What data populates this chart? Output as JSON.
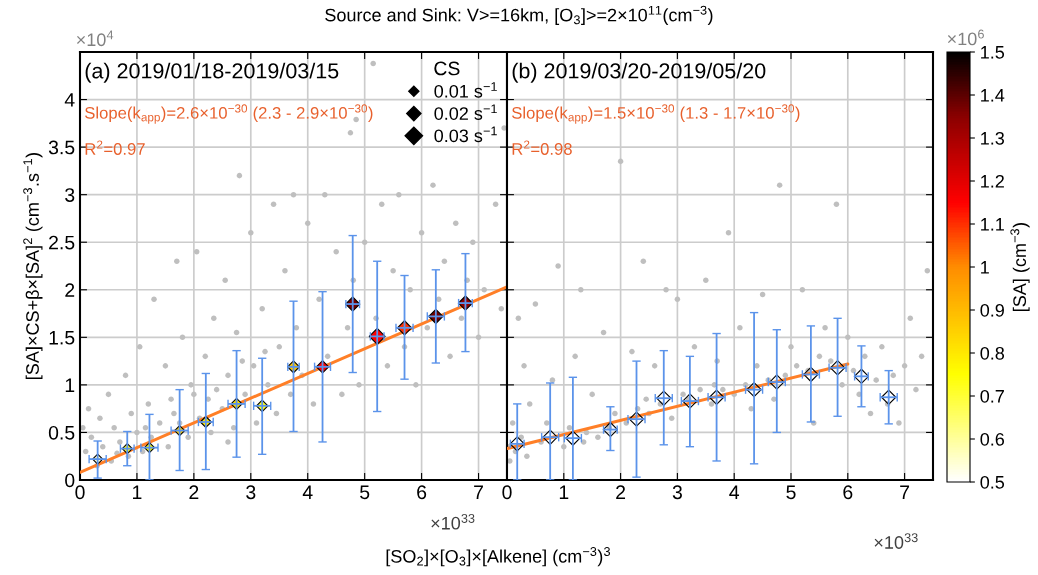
{
  "chart_data": [
    {
      "type": "scatter",
      "title": "Source and Sink: V>=16km, [O$_{3}$]>=2×10$^{11}$(cm$^{−3}$)",
      "subtitle": "(a) 2019/01/18-2019/03/15",
      "xlabel": "[SO$_{2}$]×[O$_{3}$]×[Alkene] (cm$^{−3}$)$^{3}$",
      "ylabel": "[SA]×CS+β×[SA]$^{2}$ (cm$^{−3}$.s$^{−1}$)",
      "annotations": [
        "Slope(k$_{app}$)=2.6×10$^{−30}$ (2.3 - 2.9×10$^{−30}$)",
        "R$^{2}$=0.97",
        "×10$^{4}$",
        "×10$^{33}$",
        "×10$^{6}$"
      ],
      "xlim": [
        0,
        7.5
      ],
      "ylim": [
        0,
        4.5
      ],
      "xticks": [
        0,
        1,
        2,
        3,
        4,
        5,
        6,
        7
      ],
      "yticks": [
        0,
        0.5,
        1,
        1.5,
        2,
        2.5,
        3,
        3.5,
        4
      ],
      "grid": true,
      "legend_title": "CS",
      "size_legend": [
        {
          "value": 0.01,
          "label": "0.01 s$^{−1}$"
        },
        {
          "value": 0.02,
          "label": "0.02 s$^{−1}$"
        },
        {
          "value": 0.03,
          "label": "0.03 s$^{−1}$"
        }
      ],
      "clim": [
        0.5,
        1.5
      ],
      "cticks": [
        0.5,
        0.6,
        0.7,
        0.8,
        0.9,
        1,
        1.1,
        1.2,
        1.3,
        1.4,
        1.5
      ],
      "clabel": "[SA] (cm$^{−3}$)",
      "series": [
        {
          "marker": "circle",
          "color": "#bfbfbf",
          "x": [
            0.05,
            0.1,
            0.15,
            0.2,
            0.3,
            0.35,
            0.4,
            0.5,
            0.55,
            0.6,
            0.7,
            0.8,
            0.85,
            0.9,
            1.0,
            1.05,
            1.1,
            1.2,
            1.25,
            1.3,
            1.4,
            1.5,
            1.55,
            1.6,
            1.7,
            1.75,
            1.8,
            1.9,
            2.0,
            2.05,
            2.1,
            2.2,
            2.3,
            2.35,
            2.4,
            2.5,
            2.55,
            2.6,
            2.7,
            2.75,
            2.8,
            2.9,
            3.0,
            3.05,
            3.1,
            3.2,
            3.3,
            3.4,
            3.45,
            3.5,
            3.6,
            3.7,
            3.75,
            3.8,
            3.9,
            4.0,
            4.1,
            4.2,
            4.3,
            4.35,
            4.5,
            4.6,
            4.7,
            4.75,
            4.8,
            4.85,
            4.9,
            5.0,
            5.15,
            5.2,
            5.3,
            5.4,
            5.5,
            5.6,
            5.7,
            5.8,
            5.9,
            6.0,
            6.1,
            6.2,
            6.3,
            6.4,
            6.5,
            6.6,
            6.7,
            6.8,
            6.9,
            7.0,
            7.1,
            7.3,
            7.4,
            7.45,
            2.25,
            1.65,
            2.85,
            1.15,
            0.65,
            3.25,
            2.6,
            1.95
          ],
          "values": [
            0.55,
            0.3,
            0.75,
            0.45,
            0.15,
            0.65,
            0.35,
            0.9,
            0.2,
            0.55,
            0.4,
            1.1,
            0.25,
            0.7,
            0.5,
            1.4,
            0.3,
            0.8,
            0.45,
            1.9,
            0.6,
            1.2,
            0.35,
            0.85,
            2.3,
            0.6,
            1.5,
            0.45,
            0.9,
            2.4,
            0.65,
            1.3,
            0.5,
            1.7,
            0.95,
            0.75,
            2.1,
            1.1,
            0.55,
            1.55,
            3.2,
            0.9,
            2.6,
            1.2,
            0.6,
            1.8,
            1.0,
            2.9,
            0.7,
            1.4,
            2.2,
            0.9,
            3.0,
            1.6,
            1.1,
            2.7,
            0.8,
            1.9,
            3.0,
            1.3,
            2.4,
            0.9,
            1.6,
            3.65,
            2.1,
            3.79,
            1.0,
            2.5,
            4.38,
            1.7,
            2.9,
            1.2,
            2.2,
            3.0,
            1.4,
            2.0,
            1.0,
            2.6,
            1.6,
            3.1,
            1.9,
            2.3,
            1.3,
            2.7,
            1.7,
            2.1,
            2.5,
            1.5,
            2.0,
            2.9,
            1.8,
            3.7,
            0.85,
            0.7,
            1.25,
            0.55,
            0.28,
            1.35,
            0.4,
            1.0
          ]
        },
        {
          "type": "bubble",
          "marker": "diamond",
          "x": [
            0.31,
            0.83,
            1.22,
            1.75,
            2.21,
            2.75,
            3.2,
            3.75,
            4.26,
            4.79,
            5.22,
            5.7,
            6.25,
            6.77
          ],
          "values": [
            0.22,
            0.33,
            0.34,
            0.52,
            0.61,
            0.8,
            0.78,
            1.19,
            1.19,
            1.85,
            1.51,
            1.6,
            1.72,
            1.86
          ],
          "errors": [
            [
              0.02,
              0.41
            ],
            [
              0.15,
              0.51
            ],
            [
              0.0,
              0.69
            ],
            [
              0.1,
              0.95
            ],
            [
              0.11,
              1.12
            ],
            [
              0.24,
              1.36
            ],
            [
              0.27,
              1.28
            ],
            [
              0.51,
              1.88
            ],
            [
              0.4,
              1.98
            ],
            [
              1.13,
              2.57
            ],
            [
              0.72,
              2.3
            ],
            [
              1.06,
              2.15
            ],
            [
              1.23,
              2.21
            ],
            [
              1.35,
              2.38
            ]
          ],
          "xerrors": [
            0.15,
            0.12,
            0.15,
            0.15,
            0.13,
            0.15,
            0.15,
            0.1,
            0.14,
            0.12,
            0.12,
            0.15,
            0.15,
            0.12
          ],
          "sizes": [
            0.01,
            0.01,
            0.01,
            0.01,
            0.012,
            0.012,
            0.013,
            0.014,
            0.015,
            0.02,
            0.025,
            0.02,
            0.02,
            0.02
          ],
          "colors": [
            "#ffffcc",
            "#ffff1f",
            "#ffff00",
            "#ffd100",
            "#ffe800",
            "#ffdf00",
            "#ffff1f",
            "#ffc800",
            "#ff0000",
            "#6f0000",
            "#ff0000",
            "#ff2f00",
            "#6f0000",
            "#8b0000"
          ]
        },
        {
          "type": "line",
          "color": "#ff7f27",
          "x": [
            0,
            7.5
          ],
          "values": [
            0.08,
            2.03
          ]
        }
      ]
    },
    {
      "type": "scatter",
      "subtitle": "(b) 2019/03/20-2019/05/20",
      "annotations": [
        "Slope(k$_{app}$)=1.5×10$^{−30}$ (1.3 - 1.7×10$^{−30}$)",
        "R$^{2}$=0.98",
        "×10$^{33}$"
      ],
      "xlim": [
        0,
        7.5
      ],
      "ylim": [
        0,
        4.5
      ],
      "xticks": [
        0,
        1,
        2,
        3,
        4,
        5,
        6,
        7
      ],
      "yticks": [
        0,
        0.5,
        1,
        1.5,
        2,
        2.5,
        3,
        3.5,
        4
      ],
      "grid": true,
      "tick_labels": "x",
      "series": [
        {
          "marker": "circle",
          "color": "#bfbfbf",
          "x": [
            0.02,
            0.05,
            0.1,
            0.15,
            0.2,
            0.25,
            0.3,
            0.35,
            0.4,
            0.5,
            0.6,
            0.7,
            0.8,
            0.9,
            1.0,
            1.1,
            1.2,
            1.3,
            1.4,
            1.5,
            1.6,
            1.7,
            1.8,
            1.9,
            2.0,
            2.1,
            2.2,
            2.3,
            2.4,
            2.5,
            2.6,
            2.7,
            2.8,
            2.9,
            3.0,
            3.1,
            3.2,
            3.3,
            3.4,
            3.5,
            3.6,
            3.7,
            3.8,
            3.9,
            4.0,
            4.1,
            4.2,
            4.3,
            4.4,
            4.5,
            4.6,
            4.7,
            4.8,
            4.9,
            5.0,
            5.1,
            5.2,
            5.3,
            5.4,
            5.5,
            5.6,
            5.7,
            5.8,
            5.9,
            6.0,
            6.1,
            6.2,
            6.3,
            6.4,
            6.5,
            6.6,
            6.7,
            6.8,
            6.9,
            7.0,
            7.1,
            7.2,
            7.3,
            7.4,
            2.45,
            1.35,
            3.65
          ],
          "values": [
            0.35,
            0.2,
            0.6,
            0.3,
            1.7,
            0.45,
            1.2,
            0.25,
            0.8,
            1.85,
            0.4,
            0.6,
            1.05,
            2.25,
            0.35,
            0.55,
            1.3,
            2.0,
            0.5,
            0.9,
            0.45,
            1.55,
            0.55,
            0.7,
            3.35,
            0.6,
            1.35,
            0.75,
            2.3,
            0.7,
            1.2,
            0.8,
            2.0,
            0.65,
            1.9,
            0.9,
            0.85,
            1.4,
            0.95,
            2.1,
            0.8,
            1.25,
            0.95,
            2.6,
            0.9,
            1.6,
            1.0,
            0.75,
            1.2,
            1.95,
            1.05,
            0.85,
            3.1,
            1.1,
            1.4,
            1.2,
            2.0,
            1.15,
            0.6,
            1.3,
            1.6,
            1.25,
            2.9,
            1.0,
            1.5,
            1.15,
            0.9,
            1.3,
            0.7,
            1.05,
            1.4,
            0.8,
            1.1,
            0.6,
            1.2,
            1.7,
            0.95,
            1.3,
            2.2,
            0.85,
            0.4,
            1.0
          ]
        },
        {
          "type": "bubble",
          "marker": "diamond",
          "color": "#000000",
          "x": [
            0.18,
            0.76,
            1.16,
            1.82,
            2.28,
            2.76,
            3.22,
            3.69,
            4.35,
            4.75,
            5.35,
            5.82,
            6.24,
            6.72
          ],
          "values": [
            0.38,
            0.45,
            0.44,
            0.53,
            0.64,
            0.86,
            0.83,
            0.87,
            0.95,
            1.03,
            1.11,
            1.18,
            1.09,
            0.87
          ],
          "errors": [
            [
              0.0,
              0.8
            ],
            [
              0.0,
              1.02
            ],
            [
              0.0,
              1.08
            ],
            [
              0.31,
              0.77
            ],
            [
              0.03,
              1.25
            ],
            [
              0.37,
              1.36
            ],
            [
              0.35,
              1.3
            ],
            [
              0.2,
              1.54
            ],
            [
              0.17,
              1.76
            ],
            [
              0.5,
              1.58
            ],
            [
              0.61,
              1.62
            ],
            [
              0.67,
              1.7
            ],
            [
              0.77,
              1.41
            ],
            [
              0.59,
              1.15
            ]
          ],
          "xerrors": [
            0.12,
            0.15,
            0.15,
            0.12,
            0.15,
            0.15,
            0.15,
            0.15,
            0.15,
            0.15,
            0.15,
            0.15,
            0.12,
            0.15
          ]
        },
        {
          "type": "line",
          "color": "#ff7f27",
          "x": [
            0,
            6
          ],
          "values": [
            0.33,
            1.22
          ]
        }
      ]
    }
  ]
}
